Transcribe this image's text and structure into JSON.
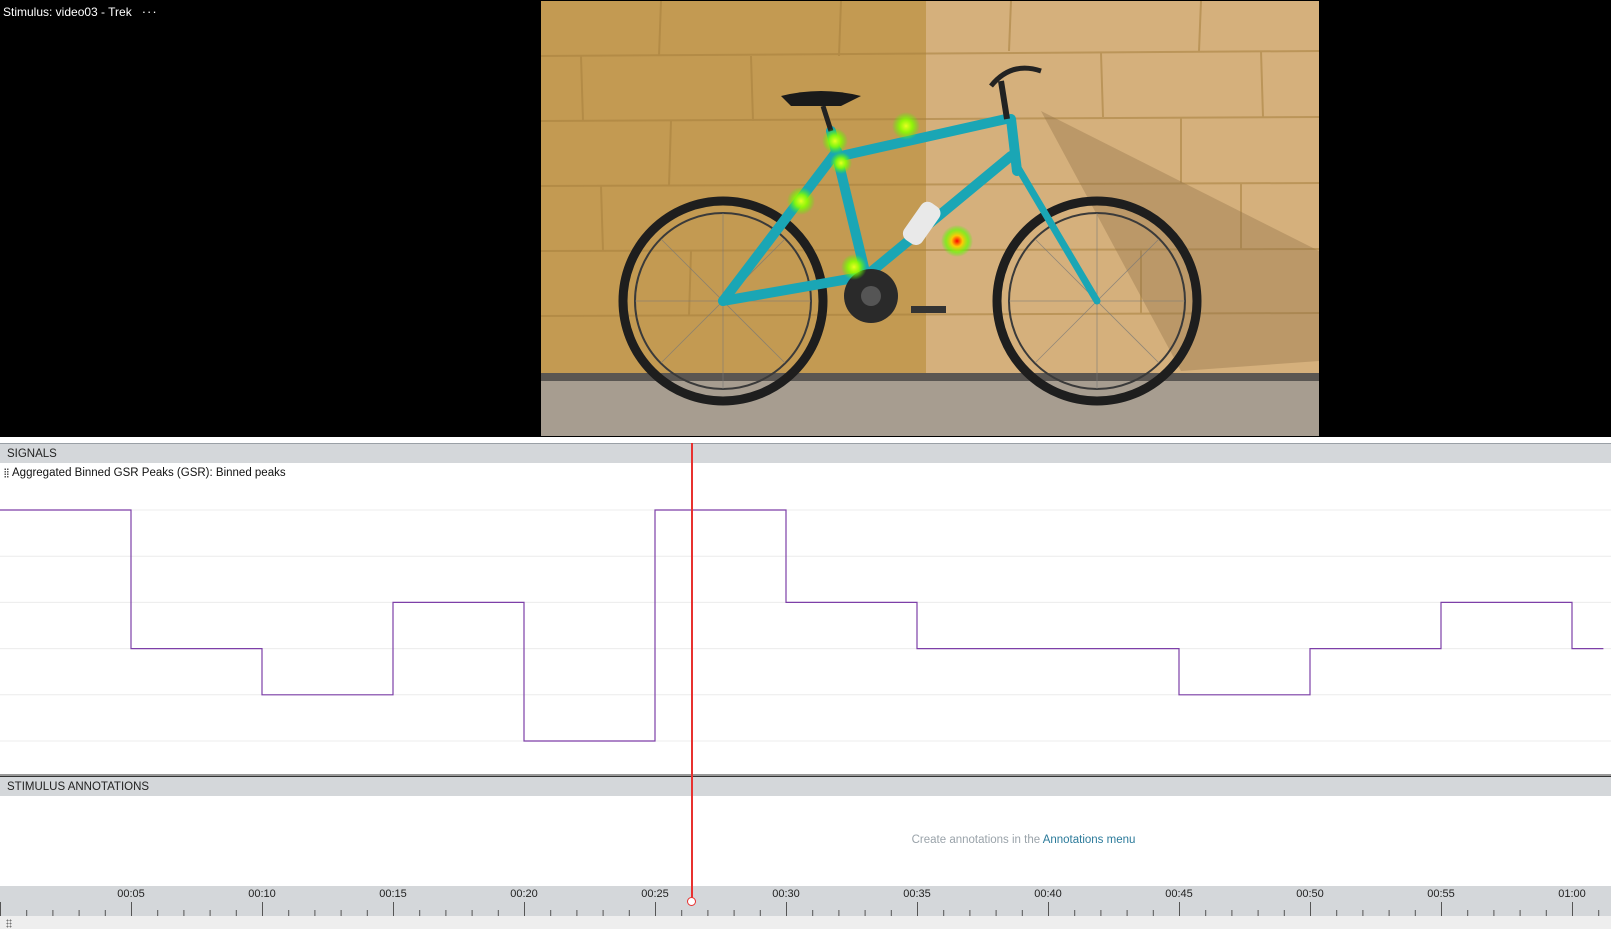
{
  "stimulus": {
    "title": "Stimulus: video03 - Trek",
    "menu_glyph": "···"
  },
  "signals": {
    "header": "SIGNALS",
    "track_label": "Aggregated Binned GSR Peaks (GSR): Binned peaks"
  },
  "annotations": {
    "header": "STIMULUS ANNOTATIONS",
    "hint_prefix": "Create annotations in the ",
    "hint_link": "Annotations menu"
  },
  "timeline": {
    "ticks": [
      "00:05",
      "00:10",
      "00:15",
      "00:20",
      "00:25",
      "00:30",
      "00:35",
      "00:40",
      "00:45",
      "00:50",
      "00:55",
      "01:00"
    ],
    "playhead_time_s": 26.4
  },
  "colors": {
    "signal_line": "#7d3fa8",
    "playhead": "#e8312f",
    "link": "#2b7a9a",
    "header_bg": "#d4d7da"
  },
  "chart_data": {
    "type": "line",
    "step": true,
    "xlim": [
      0,
      61.2
    ],
    "ylim": [
      0,
      5.5
    ],
    "series": [
      {
        "x": [
          0,
          5,
          5,
          10,
          10,
          15,
          15,
          20,
          20,
          25,
          25,
          30,
          30,
          35,
          35,
          45,
          45,
          50,
          50,
          55,
          55,
          60,
          60,
          61.2
        ],
        "values": [
          5,
          5,
          2,
          2,
          1,
          1,
          3,
          3,
          0,
          0,
          5,
          5,
          3,
          3,
          2,
          2,
          1,
          1,
          2,
          2,
          3,
          3,
          2,
          2
        ]
      }
    ]
  }
}
